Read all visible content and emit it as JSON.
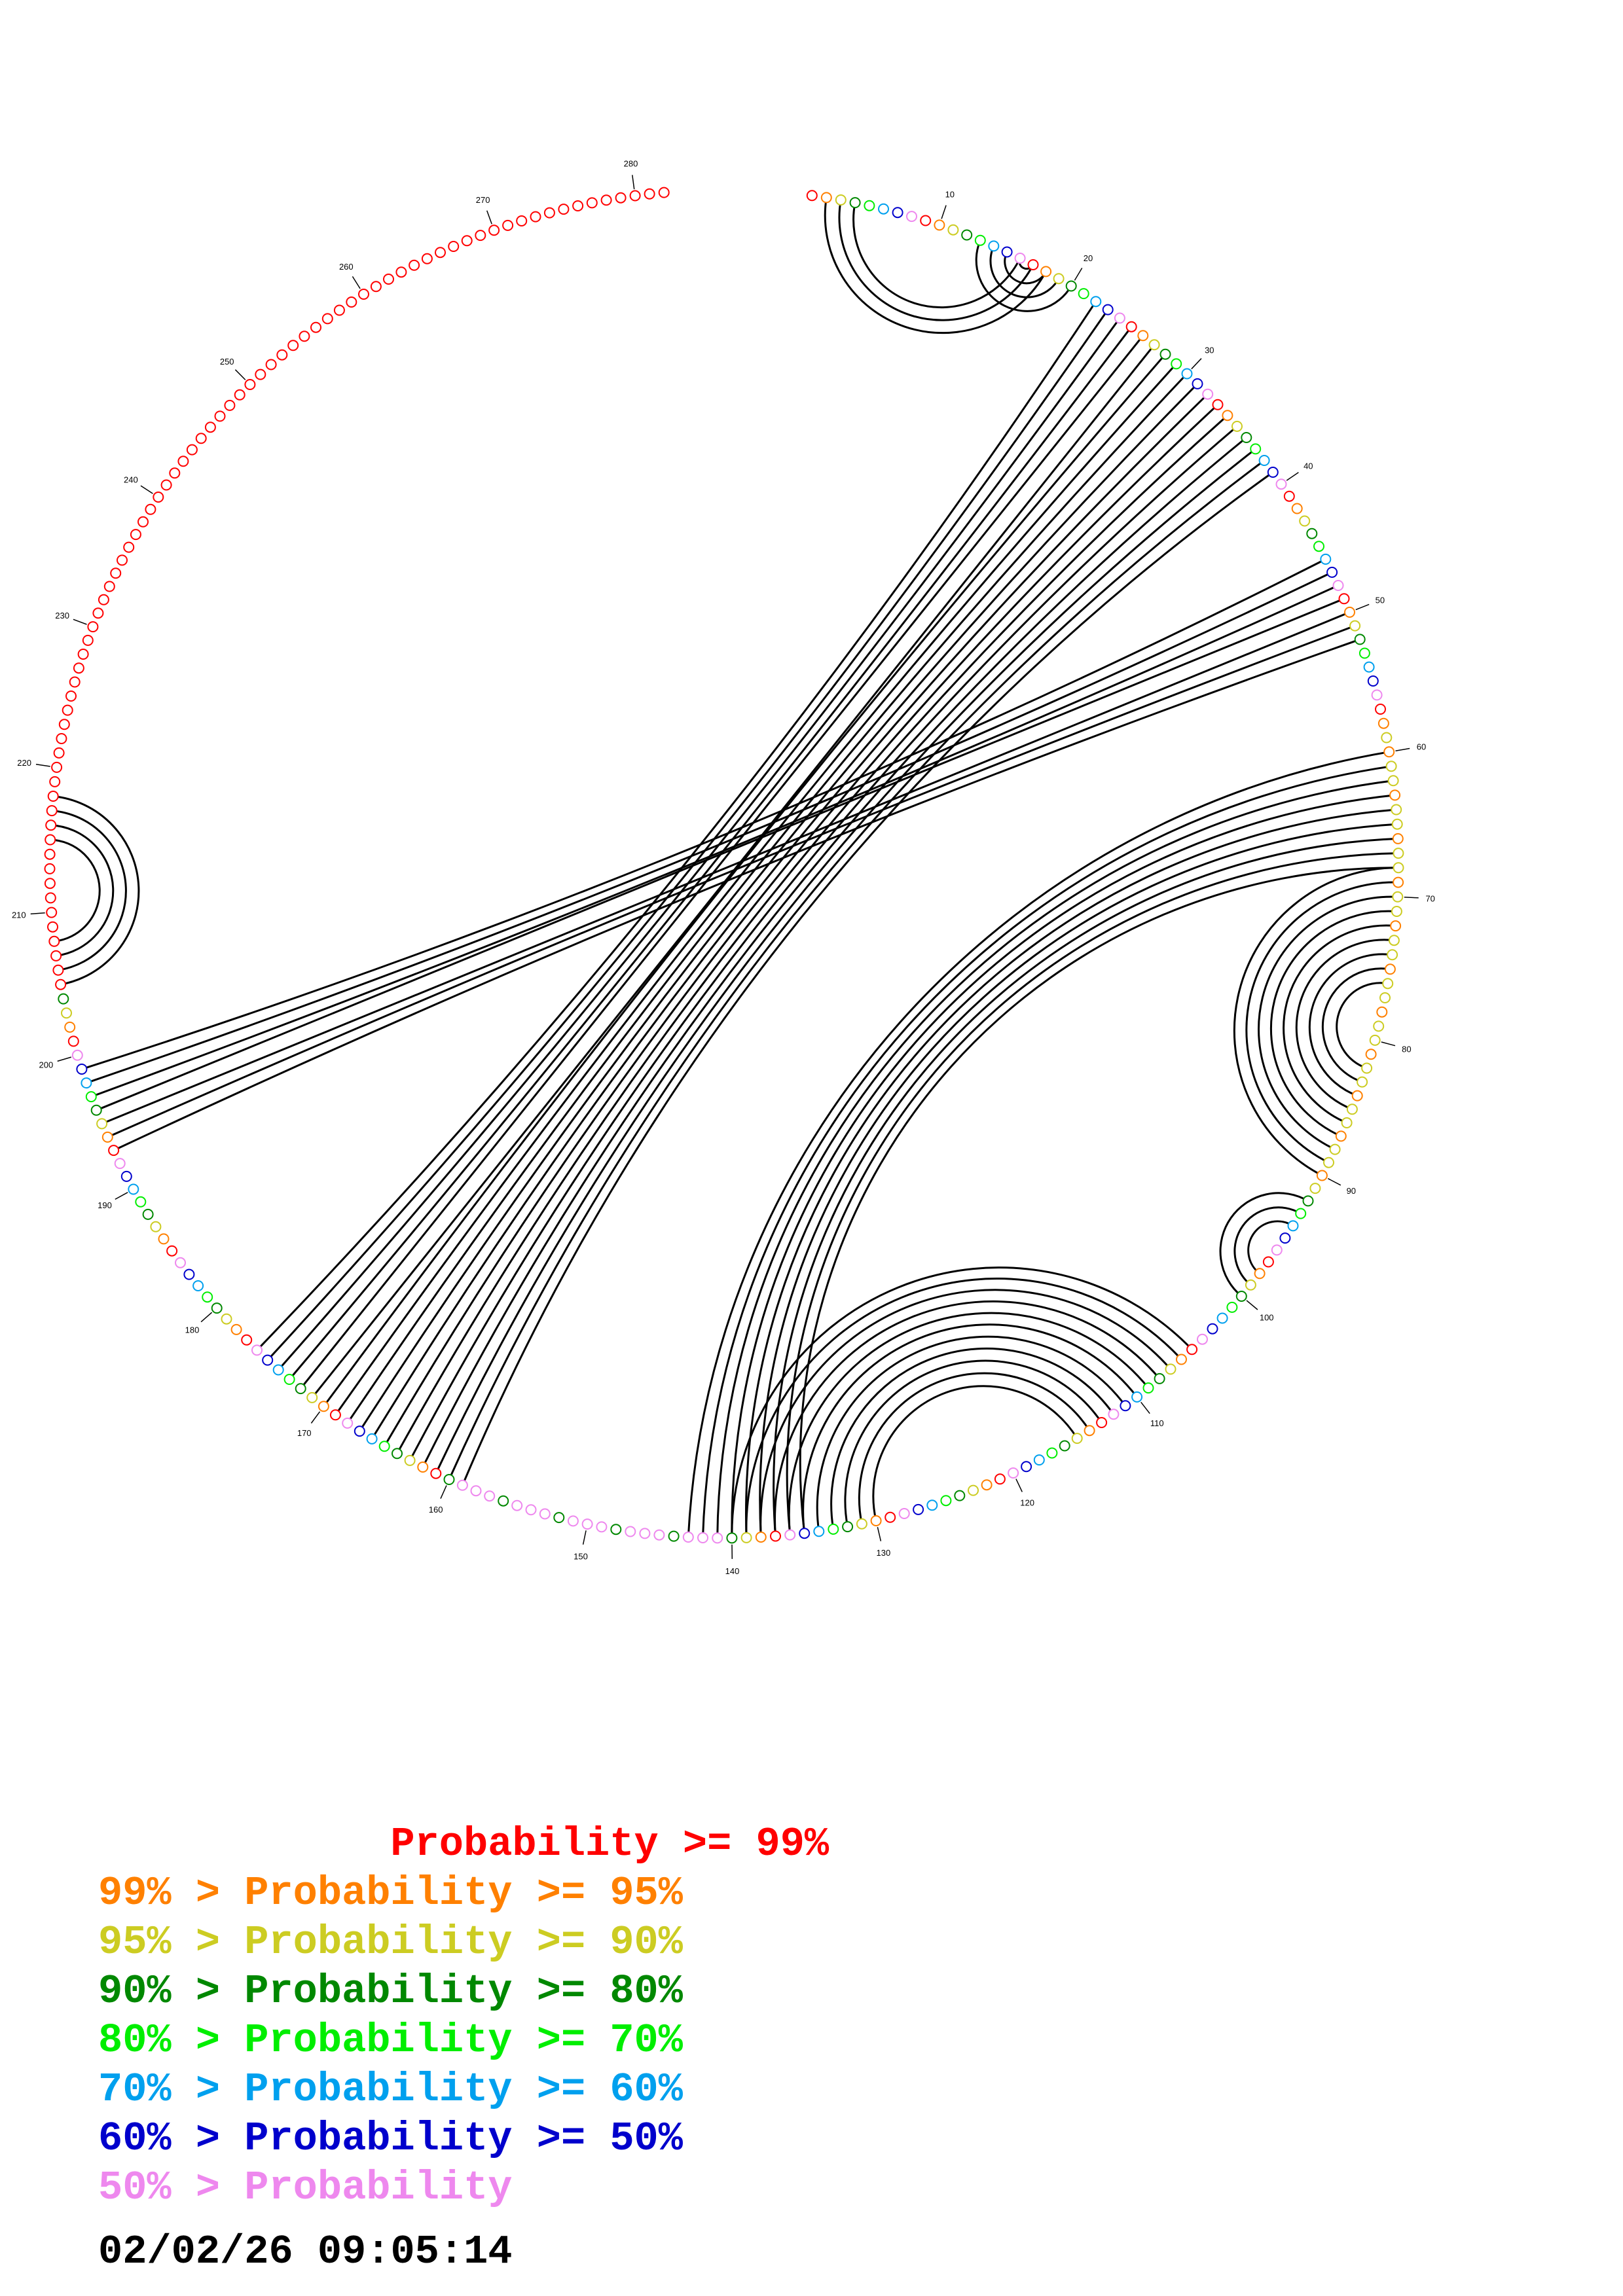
{
  "diagram": {
    "type": "circle-plot",
    "sequence_length": 282,
    "position_labels": [
      "10",
      "20",
      "30",
      "40",
      "50",
      "60",
      "70",
      "80",
      "90",
      "100",
      "110",
      "120",
      "130",
      "140",
      "150",
      "160",
      "170",
      "180",
      "190",
      "200",
      "210",
      "220",
      "230",
      "240",
      "250",
      "260",
      "270",
      "280"
    ],
    "helices": [
      {
        "i": 13,
        "j": 20,
        "len": 4
      },
      {
        "i": 2,
        "j": 18,
        "len": 3
      },
      {
        "i": 22,
        "j": 176,
        "len": 18
      },
      {
        "i": 46,
        "j": 199,
        "len": 7
      },
      {
        "i": 60,
        "j": 143,
        "len": 9
      },
      {
        "i": 68,
        "j": 90,
        "len": 9
      },
      {
        "i": 92,
        "j": 100,
        "len": 3
      },
      {
        "i": 105,
        "j": 140,
        "len": 11
      },
      {
        "i": 205,
        "j": 218,
        "len": 4
      }
    ],
    "base_colors": {
      "high": "#ff0000",
      "95": "#ff8000",
      "90": "#cccc22",
      "80": "#008800",
      "70": "#00ee00",
      "60": "#00a0ee",
      "50": "#0000cc",
      "low": "#ee88ee"
    }
  },
  "legend": [
    {
      "prefix": "",
      "sep": "",
      "label": "Probability",
      "suffix": " >= 99%",
      "color": "#ff0000"
    },
    {
      "prefix": "99%",
      "sep": " > ",
      "label": "Probability",
      "suffix": " >= 95%",
      "color": "#ff8000"
    },
    {
      "prefix": "95%",
      "sep": " > ",
      "label": "Probability",
      "suffix": " >= 90%",
      "color": "#cccc22"
    },
    {
      "prefix": "90%",
      "sep": " > ",
      "label": "Probability",
      "suffix": " >= 80%",
      "color": "#008800"
    },
    {
      "prefix": "80%",
      "sep": " > ",
      "label": "Probability",
      "suffix": " >= 70%",
      "color": "#00ee00"
    },
    {
      "prefix": "70%",
      "sep": " > ",
      "label": "Probability",
      "suffix": " >= 60%",
      "color": "#00a0ee"
    },
    {
      "prefix": "60%",
      "sep": " > ",
      "label": "Probability",
      "suffix": " >= 50%",
      "color": "#0000cc"
    },
    {
      "prefix": "50%",
      "sep": " > ",
      "label": "Probability",
      "suffix": "",
      "color": "#ee88ee"
    }
  ],
  "timestamp": "02/02/26 09:05:14"
}
